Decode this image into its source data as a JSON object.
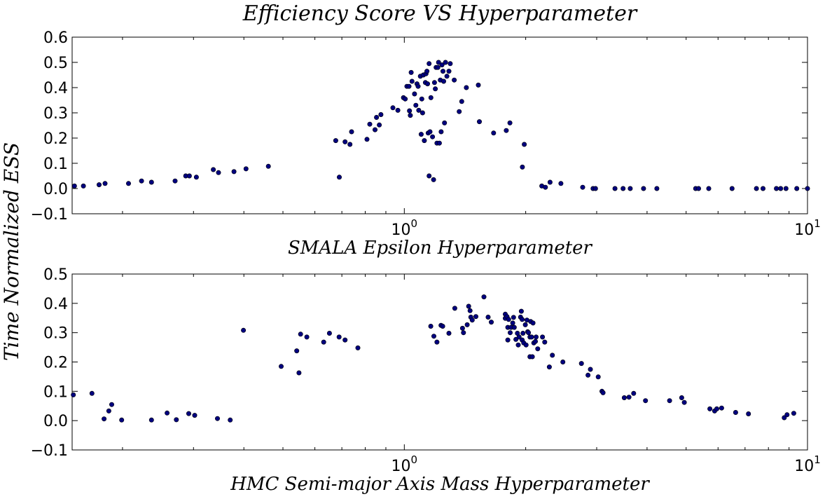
{
  "figure": {
    "title": "Efficiency Score VS Hyperparameter",
    "ylabel": "Time Normalized ESS"
  },
  "chart_data": [
    {
      "type": "scatter",
      "xlabel": "SMALA Epsilon Hyperparameter",
      "x_scale": "log",
      "xlim": [
        0.15,
        10
      ],
      "ylim": [
        -0.1,
        0.6
      ],
      "yticks": [
        "−0.1",
        "0.0",
        "0.1",
        "0.2",
        "0.3",
        "0.4",
        "0.5",
        "0.6"
      ],
      "ytick_values": [
        -0.1,
        0.0,
        0.1,
        0.2,
        0.3,
        0.4,
        0.5,
        0.6
      ],
      "xticks": [
        {
          "base": "10",
          "exp": "0"
        },
        {
          "base": "10",
          "exp": "1"
        }
      ],
      "xtick_values": [
        1,
        10
      ],
      "marker_color": "#00007f",
      "points": [
        [
          0.152,
          0.01
        ],
        [
          0.16,
          0.01
        ],
        [
          0.175,
          0.015
        ],
        [
          0.181,
          0.02
        ],
        [
          0.207,
          0.02
        ],
        [
          0.223,
          0.03
        ],
        [
          0.236,
          0.025
        ],
        [
          0.27,
          0.03
        ],
        [
          0.287,
          0.05
        ],
        [
          0.293,
          0.05
        ],
        [
          0.305,
          0.045
        ],
        [
          0.336,
          0.075
        ],
        [
          0.346,
          0.063
        ],
        [
          0.378,
          0.067
        ],
        [
          0.405,
          0.078
        ],
        [
          0.46,
          0.088
        ],
        [
          0.676,
          0.19
        ],
        [
          0.69,
          0.045
        ],
        [
          0.713,
          0.185
        ],
        [
          0.733,
          0.175
        ],
        [
          0.74,
          0.225
        ],
        [
          0.808,
          0.195
        ],
        [
          0.821,
          0.255
        ],
        [
          0.846,
          0.233
        ],
        [
          0.853,
          0.282
        ],
        [
          0.867,
          0.252
        ],
        [
          0.875,
          0.293
        ],
        [
          0.937,
          0.32
        ],
        [
          0.964,
          0.31
        ],
        [
          0.995,
          0.36
        ],
        [
          1.005,
          0.355
        ],
        [
          1.015,
          0.405
        ],
        [
          1.027,
          0.405
        ],
        [
          1.03,
          0.308
        ],
        [
          1.035,
          0.29
        ],
        [
          1.04,
          0.46
        ],
        [
          1.045,
          0.425
        ],
        [
          1.06,
          0.375
        ],
        [
          1.068,
          0.33
        ],
        [
          1.075,
          0.415
        ],
        [
          1.082,
          0.405
        ],
        [
          1.086,
          0.31
        ],
        [
          1.096,
          0.445
        ],
        [
          1.101,
          0.215
        ],
        [
          1.105,
          0.355
        ],
        [
          1.11,
          0.3
        ],
        [
          1.115,
          0.45
        ],
        [
          1.121,
          0.19
        ],
        [
          1.128,
          0.42
        ],
        [
          1.132,
          0.455
        ],
        [
          1.138,
          0.465
        ],
        [
          1.142,
          0.415
        ],
        [
          1.146,
          0.22
        ],
        [
          1.152,
          0.495
        ],
        [
          1.152,
          0.05
        ],
        [
          1.158,
          0.225
        ],
        [
          1.164,
          0.36
        ],
        [
          1.175,
          0.205
        ],
        [
          1.182,
          0.035
        ],
        [
          1.188,
          0.42
        ],
        [
          1.194,
          0.395
        ],
        [
          1.199,
          0.48
        ],
        [
          1.205,
          0.18
        ],
        [
          1.211,
          0.48
        ],
        [
          1.216,
          0.5
        ],
        [
          1.222,
          0.18
        ],
        [
          1.228,
          0.43
        ],
        [
          1.234,
          0.225
        ],
        [
          1.24,
          0.49
        ],
        [
          1.247,
          0.465
        ],
        [
          1.252,
          0.425
        ],
        [
          1.258,
          0.26
        ],
        [
          1.265,
          0.5
        ],
        [
          1.275,
          0.445
        ],
        [
          1.29,
          0.465
        ],
        [
          1.3,
          0.495
        ],
        [
          1.33,
          0.43
        ],
        [
          1.368,
          0.305
        ],
        [
          1.388,
          0.345
        ],
        [
          1.425,
          0.4
        ],
        [
          1.526,
          0.41
        ],
        [
          1.535,
          0.265
        ],
        [
          1.665,
          0.22
        ],
        [
          1.79,
          0.23
        ],
        [
          1.828,
          0.26
        ],
        [
          1.963,
          0.085
        ],
        [
          1.984,
          0.175
        ],
        [
          2.193,
          0.01
        ],
        [
          2.239,
          0.005
        ],
        [
          2.299,
          0.025
        ],
        [
          2.446,
          0.02
        ],
        [
          2.77,
          0.005
        ],
        [
          2.938,
          0.0
        ],
        [
          2.98,
          0.0
        ],
        [
          3.33,
          0.0
        ],
        [
          3.488,
          0.0
        ],
        [
          3.634,
          0.0
        ],
        [
          3.92,
          0.0
        ],
        [
          4.23,
          0.0
        ],
        [
          5.28,
          0.0
        ],
        [
          5.37,
          0.0
        ],
        [
          5.69,
          0.0
        ],
        [
          6.5,
          0.0
        ],
        [
          7.47,
          0.0
        ],
        [
          7.757,
          0.0
        ],
        [
          8.373,
          0.0
        ],
        [
          8.58,
          0.0
        ],
        [
          8.845,
          0.0
        ],
        [
          9.405,
          0.0
        ],
        [
          10.0,
          0.0
        ]
      ]
    },
    {
      "type": "scatter",
      "xlabel": "HMC Semi-major Axis Mass Hyperparameter",
      "x_scale": "log",
      "xlim": [
        0.15,
        10
      ],
      "ylim": [
        -0.1,
        0.5
      ],
      "yticks": [
        "−0.1",
        "0.0",
        "0.1",
        "0.2",
        "0.3",
        "0.4",
        "0.5"
      ],
      "ytick_values": [
        -0.1,
        0.0,
        0.1,
        0.2,
        0.3,
        0.4,
        0.5
      ],
      "xticks": [
        {
          "base": "10",
          "exp": "0"
        },
        {
          "base": "10",
          "exp": "1"
        }
      ],
      "xtick_values": [
        1,
        10
      ],
      "marker_color": "#00007f",
      "points": [
        [
          0.151,
          0.088
        ],
        [
          0.168,
          0.093
        ],
        [
          0.18,
          0.006
        ],
        [
          0.185,
          0.033
        ],
        [
          0.188,
          0.055
        ],
        [
          0.199,
          0.002
        ],
        [
          0.236,
          0.002
        ],
        [
          0.258,
          0.026
        ],
        [
          0.272,
          0.003
        ],
        [
          0.292,
          0.024
        ],
        [
          0.302,
          0.018
        ],
        [
          0.344,
          0.007
        ],
        [
          0.37,
          0.002
        ],
        [
          0.399,
          0.308
        ],
        [
          0.495,
          0.185
        ],
        [
          0.541,
          0.238
        ],
        [
          0.548,
          0.163
        ],
        [
          0.553,
          0.295
        ],
        [
          0.573,
          0.285
        ],
        [
          0.631,
          0.268
        ],
        [
          0.652,
          0.298
        ],
        [
          0.689,
          0.285
        ],
        [
          0.713,
          0.275
        ],
        [
          0.767,
          0.248
        ],
        [
          1.163,
          0.322
        ],
        [
          1.184,
          0.288
        ],
        [
          1.205,
          0.268
        ],
        [
          1.233,
          0.325
        ],
        [
          1.245,
          0.322
        ],
        [
          1.29,
          0.298
        ],
        [
          1.334,
          0.383
        ],
        [
          1.394,
          0.315
        ],
        [
          1.402,
          0.3
        ],
        [
          1.432,
          0.327
        ],
        [
          1.444,
          0.39
        ],
        [
          1.456,
          0.375
        ],
        [
          1.462,
          0.353
        ],
        [
          1.474,
          0.343
        ],
        [
          1.505,
          0.355
        ],
        [
          1.576,
          0.422
        ],
        [
          1.614,
          0.353
        ],
        [
          1.643,
          0.336
        ],
        [
          1.78,
          0.363
        ],
        [
          1.78,
          0.349
        ],
        [
          1.797,
          0.355
        ],
        [
          1.806,
          0.275
        ],
        [
          1.806,
          0.318
        ],
        [
          1.815,
          0.345
        ],
        [
          1.831,
          0.3
        ],
        [
          1.84,
          0.318
        ],
        [
          1.857,
          0.333
        ],
        [
          1.866,
          0.352
        ],
        [
          1.874,
          0.318
        ],
        [
          1.891,
          0.277
        ],
        [
          1.908,
          0.298
        ],
        [
          1.917,
          0.258
        ],
        [
          1.926,
          0.285
        ],
        [
          1.942,
          0.353
        ],
        [
          1.951,
          0.373
        ],
        [
          1.96,
          0.345
        ],
        [
          1.96,
          0.275
        ],
        [
          1.969,
          0.298
        ],
        [
          1.978,
          0.265
        ],
        [
          1.996,
          0.327
        ],
        [
          2.005,
          0.258
        ],
        [
          2.014,
          0.343
        ],
        [
          2.023,
          0.303
        ],
        [
          2.032,
          0.3
        ],
        [
          2.049,
          0.285
        ],
        [
          2.049,
          0.218
        ],
        [
          2.058,
          0.338
        ],
        [
          2.068,
          0.285
        ],
        [
          2.077,
          0.218
        ],
        [
          2.086,
          0.333
        ],
        [
          2.095,
          0.265
        ],
        [
          2.114,
          0.27
        ],
        [
          2.123,
          0.285
        ],
        [
          2.142,
          0.245
        ],
        [
          2.201,
          0.285
        ],
        [
          2.23,
          0.268
        ],
        [
          2.289,
          0.183
        ],
        [
          2.329,
          0.223
        ],
        [
          2.473,
          0.2
        ],
        [
          2.75,
          0.195
        ],
        [
          2.855,
          0.155
        ],
        [
          2.894,
          0.175
        ],
        [
          3.027,
          0.149
        ],
        [
          3.092,
          0.1
        ],
        [
          3.112,
          0.095
        ],
        [
          3.512,
          0.078
        ],
        [
          3.608,
          0.08
        ],
        [
          3.705,
          0.093
        ],
        [
          3.965,
          0.068
        ],
        [
          4.55,
          0.068
        ],
        [
          4.876,
          0.078
        ],
        [
          4.948,
          0.062
        ],
        [
          5.727,
          0.04
        ],
        [
          5.883,
          0.033
        ],
        [
          5.957,
          0.04
        ],
        [
          6.124,
          0.043
        ],
        [
          6.633,
          0.028
        ],
        [
          7.139,
          0.023
        ],
        [
          8.758,
          0.01
        ],
        [
          8.899,
          0.02
        ],
        [
          9.246,
          0.025
        ]
      ]
    }
  ]
}
